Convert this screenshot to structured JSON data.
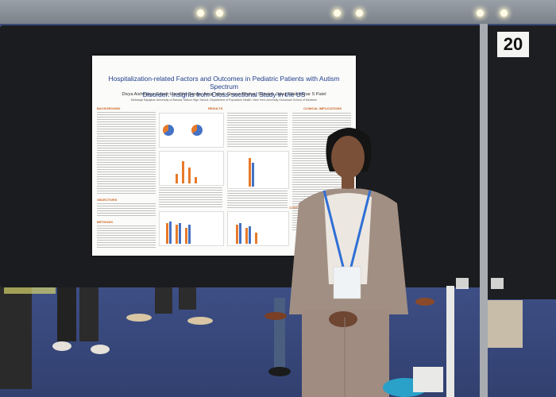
{
  "booth": {
    "number": "20"
  },
  "poster": {
    "title_line1": "Hospitalization-related Factors and Outcomes in Pediatric Patients with Autism Spectrum",
    "title_line2": "Disorder: Insights from Cross-sectional Study in the US",
    "authors": "Divya Aishwarya Gandi; Harshita Ganga; Azqa Iqbal; Shreya Mishra; Sanskar Jakaj; Rikinkumar S Patel",
    "affiliation": "Maharaja Sayajirao University of Baroda; Mason High School; Department of Population Health, New York University Grossman School of Medicine",
    "sections": {
      "background": "BACKGROUND",
      "results": "RESULTS",
      "clinical": "CLINICAL IMPLICATIONS",
      "objectives": "OBJECTIVES",
      "methods": "METHODS",
      "conclusion": "CONC"
    }
  },
  "colors": {
    "title_blue": "#1e3d8a",
    "accent_orange": "#c8611c",
    "suit": "#a18f83"
  }
}
